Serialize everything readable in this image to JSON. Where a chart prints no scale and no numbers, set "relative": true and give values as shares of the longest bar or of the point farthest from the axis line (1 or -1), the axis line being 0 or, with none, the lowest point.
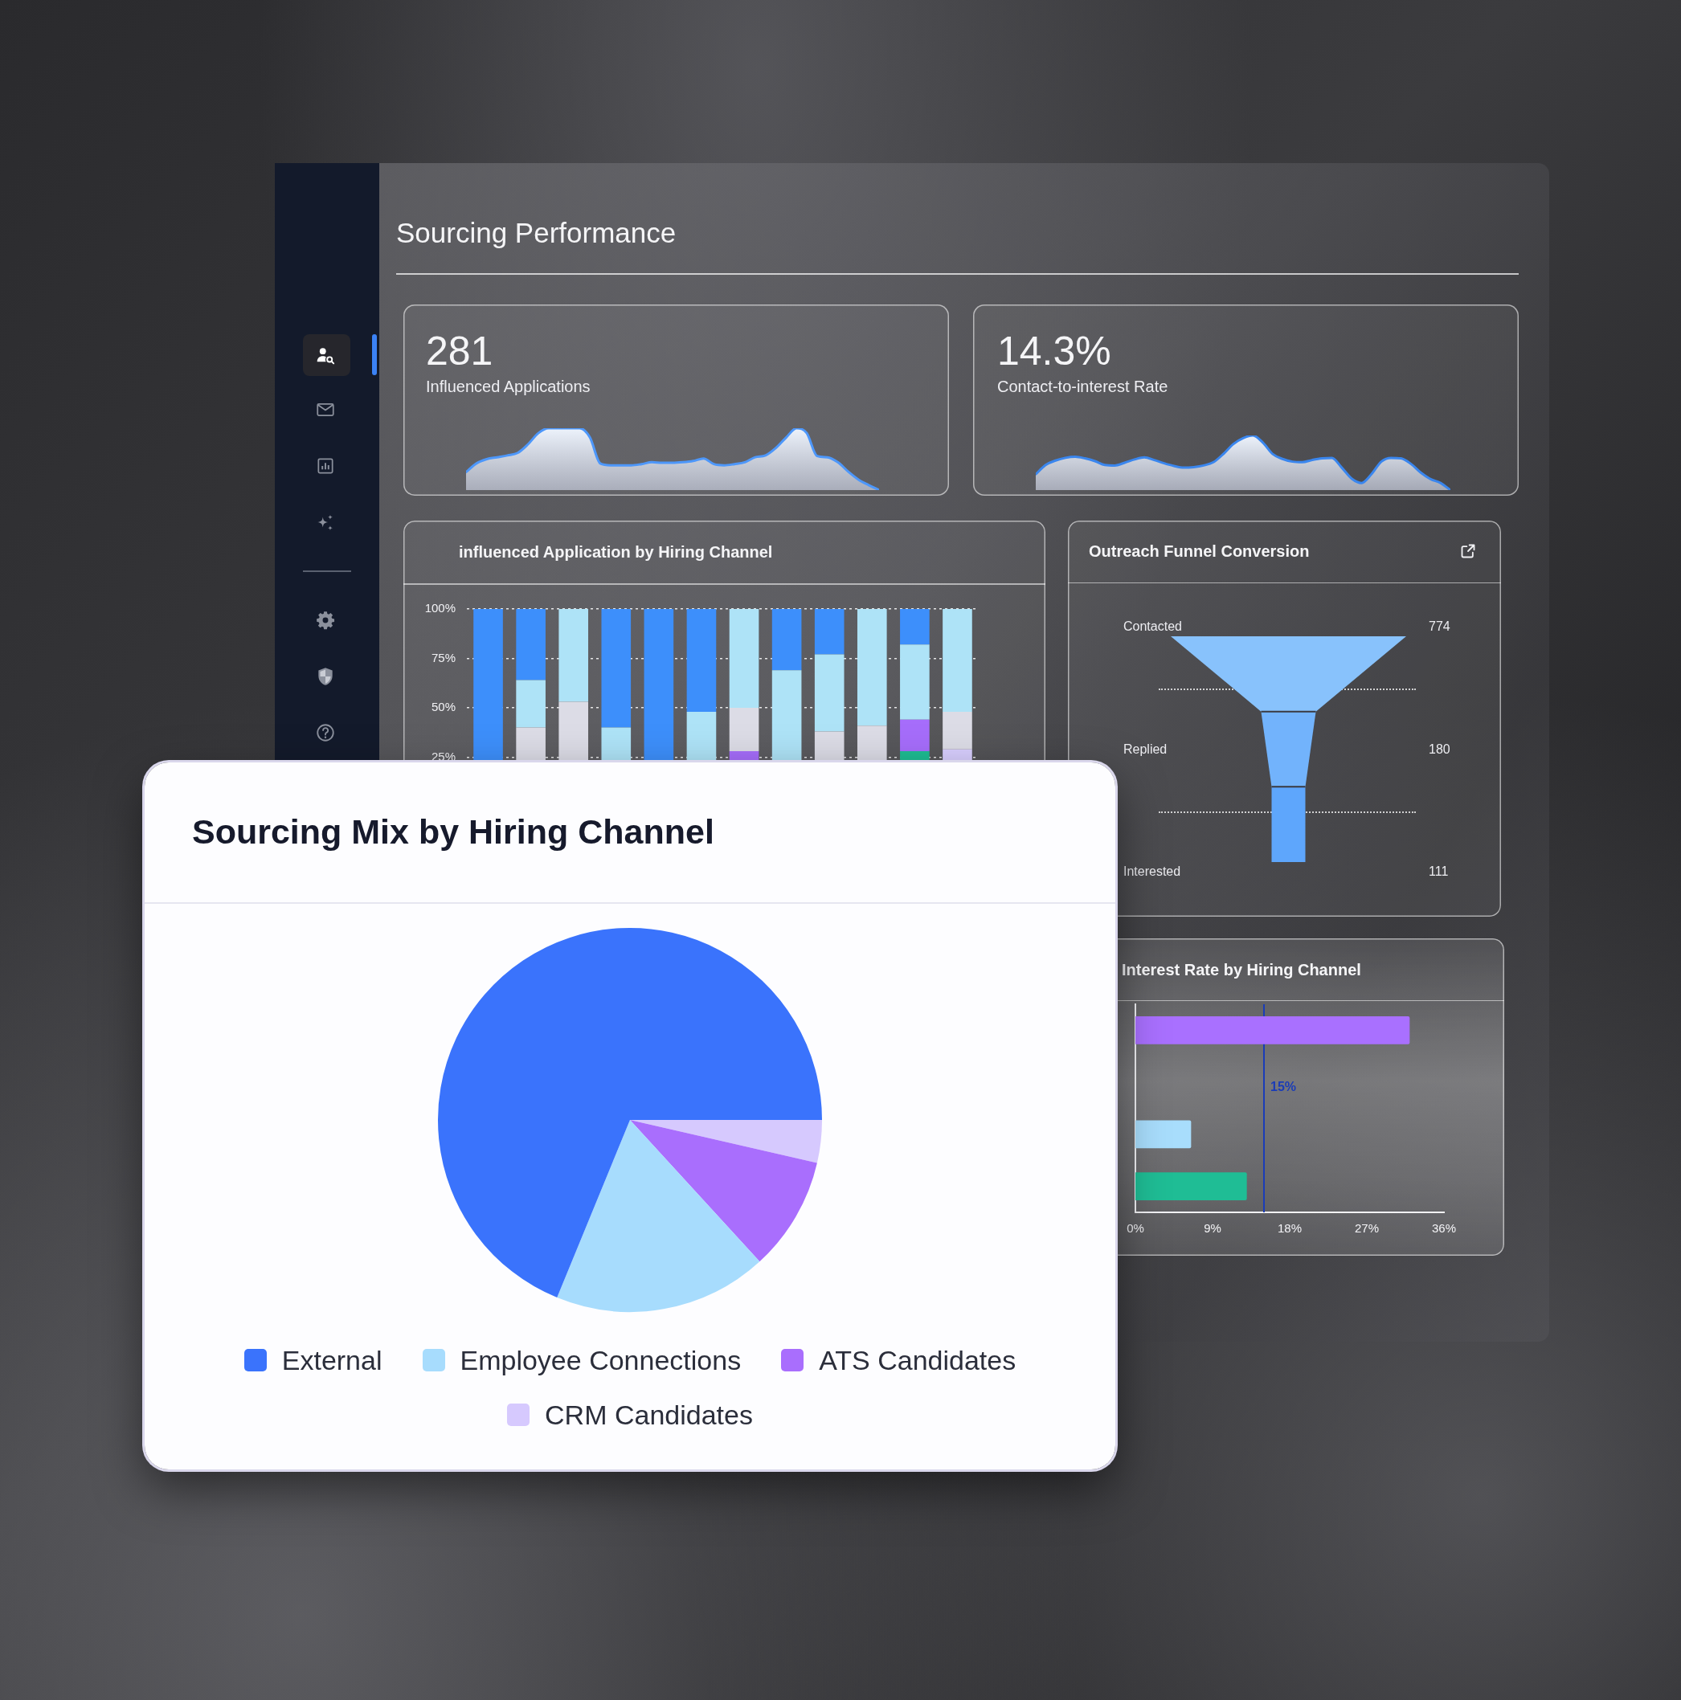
{
  "chart_data": [
    {
      "type": "other",
      "title": "Sourcing Performance"
    },
    {
      "type": "other",
      "title": "281",
      "subtitle": "Influenced Applications"
    },
    {
      "type": "area",
      "relative": true,
      "categories": [
        null,
        null,
        null,
        null,
        null,
        null,
        null,
        null,
        null,
        null,
        null,
        null,
        null,
        null,
        null,
        null,
        null,
        null,
        null,
        null,
        null,
        null,
        null,
        null,
        null,
        null,
        null,
        null,
        null,
        null,
        null,
        null,
        null,
        null,
        null,
        null,
        null,
        null,
        null,
        null,
        null
      ],
      "color": "#4d97fa",
      "values": [
        0.29,
        0.43,
        0.5,
        0.53,
        0.56,
        0.6,
        0.74,
        0.92,
        1,
        1,
        1,
        1,
        0.85,
        0.43,
        0.4,
        0.4,
        0.4,
        0.42,
        0.45,
        0.44,
        0.44,
        0.45,
        0.47,
        0.51,
        0.42,
        0.4,
        0.42,
        0.45,
        0.53,
        0.56,
        0.68,
        0.85,
        1,
        0.92,
        0.55,
        0.53,
        0.45,
        0.3,
        0.17,
        0.08,
        0
      ]
    },
    {
      "type": "other",
      "title": "14.3%",
      "subtitle": "Contact-to-interest Rate"
    },
    {
      "type": "area",
      "relative": true,
      "categories": [
        null,
        null,
        null,
        null,
        null,
        null,
        null,
        null,
        null,
        null,
        null,
        null,
        null,
        null,
        null,
        null,
        null,
        null,
        null,
        null,
        null,
        null,
        null,
        null,
        null,
        null,
        null,
        null,
        null,
        null,
        null,
        null,
        null,
        null,
        null,
        null,
        null,
        null,
        null,
        null,
        null,
        null,
        null
      ],
      "color": "#3a86ee",
      "values": [
        0.29,
        0.46,
        0.54,
        0.59,
        0.61,
        0.58,
        0.53,
        0.46,
        0.45,
        0.5,
        0.56,
        0.6,
        0.55,
        0.49,
        0.44,
        0.41,
        0.42,
        0.45,
        0.51,
        0.66,
        0.84,
        0.95,
        1,
        0.87,
        0.66,
        0.57,
        0.52,
        0.51,
        0.55,
        0.58,
        0.59,
        0.41,
        0.21,
        0.13,
        0.29,
        0.52,
        0.59,
        0.58,
        0.48,
        0.32,
        0.2,
        0.13,
        0
      ]
    },
    {
      "type": "bar",
      "stacked": true,
      "title": "influenced Application by Hiring Channel",
      "categories": [
        null,
        null,
        null,
        null,
        null,
        null,
        null,
        null,
        null,
        null,
        null,
        null
      ],
      "series": [
        {
          "color": "#1ebd93",
          "values": [
            null,
            null,
            null,
            null,
            null,
            null,
            null,
            null,
            null,
            null,
            28,
            null
          ]
        },
        {
          "color": "#d9cfff",
          "values": [
            null,
            null,
            null,
            null,
            null,
            null,
            null,
            null,
            null,
            null,
            null,
            29
          ]
        },
        {
          "color": "#a66dfb",
          "values": [
            null,
            null,
            null,
            null,
            null,
            null,
            28,
            null,
            null,
            null,
            16,
            null
          ]
        },
        {
          "color": "#dcdce6",
          "values": [
            null,
            40,
            53,
            null,
            null,
            null,
            22,
            null,
            38,
            41,
            null,
            19
          ]
        },
        {
          "color": "#aee3f7",
          "values": [
            null,
            24,
            47,
            40,
            null,
            48,
            50,
            69,
            39,
            59,
            38,
            52
          ]
        },
        {
          "color": "#3d8ffb",
          "values": [
            100,
            36,
            null,
            60,
            100,
            52,
            null,
            31,
            23,
            null,
            18,
            null
          ]
        }
      ],
      "ylim": [
        0,
        100
      ],
      "yticks": [
        {
          "value": 25,
          "label": "25%"
        },
        {
          "value": 50,
          "label": "50%"
        },
        {
          "value": 75,
          "label": "75%"
        },
        {
          "value": 100,
          "label": "100%"
        }
      ],
      "grid": "y",
      "tick_labels": "y"
    },
    {
      "type": "other",
      "title": "Outreach Funnel Conversion",
      "categories": [
        "Contacted",
        "Replied",
        "Interested"
      ],
      "values": [
        774,
        180,
        111
      ],
      "colors": [
        "#88c2fc",
        "#72b3fc",
        "#5ea6fc"
      ],
      "data_labels": true
    },
    {
      "type": "bar",
      "orientation": "horizontal",
      "title": "Interest Rate by Hiring Channel",
      "categories": [
        null,
        null,
        null,
        null
      ],
      "values": [
        32,
        null,
        6.5,
        13
      ],
      "colors": [
        "#a970ff",
        null,
        "#a8ddfc",
        "#1fbd95"
      ],
      "xlim": [
        0,
        36
      ],
      "xticks": [
        {
          "value": 0,
          "label": "0%"
        },
        {
          "value": 9,
          "label": "9%"
        },
        {
          "value": 18,
          "label": "18%"
        },
        {
          "value": 27,
          "label": "27%"
        },
        {
          "value": 36,
          "label": "36%"
        }
      ],
      "ref_lines": [
        {
          "axis": "x",
          "value": 15,
          "label": "15%",
          "color": "#1a3cb8"
        }
      ],
      "tick_labels": "x"
    },
    {
      "type": "pie",
      "title": "Sourcing Mix by Hiring Channel",
      "categories": [
        "External",
        "Employee Connections",
        "ATS Candidates",
        "CRM Candidates"
      ],
      "values": [
        68.8,
        18,
        9.6,
        3.6
      ],
      "colors": [
        "#3a73fc",
        "#a7dcfd",
        "#a96efd",
        "#d6c9fe"
      ],
      "legend": "bottom"
    }
  ]
}
